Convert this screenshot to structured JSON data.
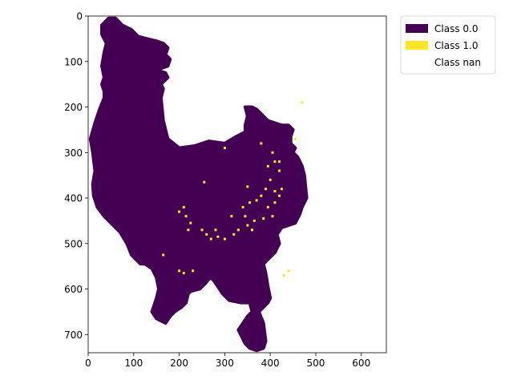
{
  "chart_data": {
    "type": "heatmap",
    "title": "",
    "xlabel": "",
    "ylabel": "",
    "xlim": [
      0,
      655
    ],
    "ylim": [
      740,
      0
    ],
    "x_ticks": [
      0,
      100,
      200,
      300,
      400,
      500,
      600
    ],
    "y_ticks": [
      0,
      100,
      200,
      300,
      400,
      500,
      600,
      700
    ],
    "grid": false,
    "legend_position": "outside-top-right",
    "classes": [
      {
        "label": "Class 0.0",
        "color": "#440154"
      },
      {
        "label": "Class 1.0",
        "color": "#fde725"
      },
      {
        "label": "Class nan",
        "color": "#ffffff"
      }
    ],
    "region_outline": [
      [
        30,
        20
      ],
      [
        45,
        5
      ],
      [
        60,
        5
      ],
      [
        75,
        20
      ],
      [
        95,
        30
      ],
      [
        110,
        45
      ],
      [
        130,
        50
      ],
      [
        150,
        55
      ],
      [
        165,
        60
      ],
      [
        175,
        70
      ],
      [
        170,
        85
      ],
      [
        180,
        95
      ],
      [
        175,
        110
      ],
      [
        160,
        115
      ],
      [
        155,
        120
      ],
      [
        170,
        125
      ],
      [
        175,
        135
      ],
      [
        160,
        150
      ],
      [
        165,
        160
      ],
      [
        160,
        180
      ],
      [
        165,
        230
      ],
      [
        175,
        270
      ],
      [
        200,
        290
      ],
      [
        235,
        285
      ],
      [
        265,
        275
      ],
      [
        300,
        280
      ],
      [
        325,
        265
      ],
      [
        345,
        255
      ],
      [
        345,
        240
      ],
      [
        350,
        220
      ],
      [
        345,
        200
      ],
      [
        360,
        200
      ],
      [
        370,
        205
      ],
      [
        380,
        215
      ],
      [
        395,
        230
      ],
      [
        410,
        235
      ],
      [
        425,
        240
      ],
      [
        440,
        240
      ],
      [
        450,
        250
      ],
      [
        445,
        265
      ],
      [
        445,
        280
      ],
      [
        455,
        290
      ],
      [
        450,
        300
      ],
      [
        460,
        310
      ],
      [
        470,
        330
      ],
      [
        475,
        350
      ],
      [
        480,
        400
      ],
      [
        470,
        420
      ],
      [
        465,
        435
      ],
      [
        455,
        455
      ],
      [
        440,
        460
      ],
      [
        425,
        465
      ],
      [
        415,
        480
      ],
      [
        420,
        500
      ],
      [
        410,
        520
      ],
      [
        395,
        535
      ],
      [
        385,
        545
      ],
      [
        390,
        565
      ],
      [
        395,
        595
      ],
      [
        400,
        620
      ],
      [
        395,
        630
      ],
      [
        375,
        650
      ],
      [
        385,
        675
      ],
      [
        390,
        715
      ],
      [
        385,
        730
      ],
      [
        370,
        735
      ],
      [
        355,
        730
      ],
      [
        345,
        720
      ],
      [
        335,
        700
      ],
      [
        330,
        690
      ],
      [
        340,
        675
      ],
      [
        350,
        660
      ],
      [
        360,
        650
      ],
      [
        355,
        630
      ],
      [
        335,
        630
      ],
      [
        310,
        625
      ],
      [
        295,
        610
      ],
      [
        285,
        595
      ],
      [
        275,
        580
      ],
      [
        268,
        575
      ],
      [
        255,
        590
      ],
      [
        245,
        600
      ],
      [
        225,
        605
      ],
      [
        220,
        610
      ],
      [
        215,
        630
      ],
      [
        205,
        640
      ],
      [
        190,
        650
      ],
      [
        180,
        660
      ],
      [
        170,
        675
      ],
      [
        150,
        665
      ],
      [
        140,
        650
      ],
      [
        145,
        635
      ],
      [
        150,
        620
      ],
      [
        155,
        600
      ],
      [
        150,
        575
      ],
      [
        140,
        555
      ],
      [
        125,
        545
      ],
      [
        115,
        545
      ],
      [
        95,
        525
      ],
      [
        85,
        500
      ],
      [
        70,
        475
      ],
      [
        50,
        455
      ],
      [
        35,
        440
      ],
      [
        20,
        420
      ],
      [
        12,
        395
      ],
      [
        10,
        370
      ],
      [
        15,
        340
      ],
      [
        10,
        300
      ],
      [
        5,
        270
      ],
      [
        15,
        235
      ],
      [
        25,
        205
      ],
      [
        35,
        180
      ],
      [
        35,
        165
      ],
      [
        30,
        150
      ],
      [
        35,
        135
      ],
      [
        30,
        110
      ],
      [
        35,
        80
      ],
      [
        40,
        60
      ],
      [
        30,
        40
      ]
    ],
    "class_1_points": [
      [
        405,
        300
      ],
      [
        410,
        320
      ],
      [
        395,
        330
      ],
      [
        420,
        340
      ],
      [
        400,
        360
      ],
      [
        390,
        380
      ],
      [
        410,
        385
      ],
      [
        420,
        395
      ],
      [
        380,
        395
      ],
      [
        370,
        405
      ],
      [
        355,
        410
      ],
      [
        340,
        420
      ],
      [
        395,
        420
      ],
      [
        405,
        440
      ],
      [
        385,
        445
      ],
      [
        365,
        450
      ],
      [
        350,
        460
      ],
      [
        330,
        470
      ],
      [
        320,
        480
      ],
      [
        300,
        490
      ],
      [
        360,
        470
      ],
      [
        410,
        410
      ],
      [
        425,
        380
      ],
      [
        345,
        440
      ],
      [
        210,
        420
      ],
      [
        215,
        440
      ],
      [
        225,
        455
      ],
      [
        220,
        470
      ],
      [
        200,
        430
      ],
      [
        250,
        470
      ],
      [
        260,
        480
      ],
      [
        270,
        490
      ],
      [
        280,
        470
      ],
      [
        285,
        485
      ],
      [
        165,
        525
      ],
      [
        200,
        560
      ],
      [
        210,
        565
      ],
      [
        230,
        560
      ],
      [
        470,
        190
      ],
      [
        455,
        270
      ],
      [
        380,
        280
      ],
      [
        300,
        290
      ],
      [
        255,
        365
      ],
      [
        350,
        375
      ],
      [
        440,
        560
      ],
      [
        430,
        570
      ],
      [
        420,
        320
      ],
      [
        315,
        440
      ]
    ]
  }
}
